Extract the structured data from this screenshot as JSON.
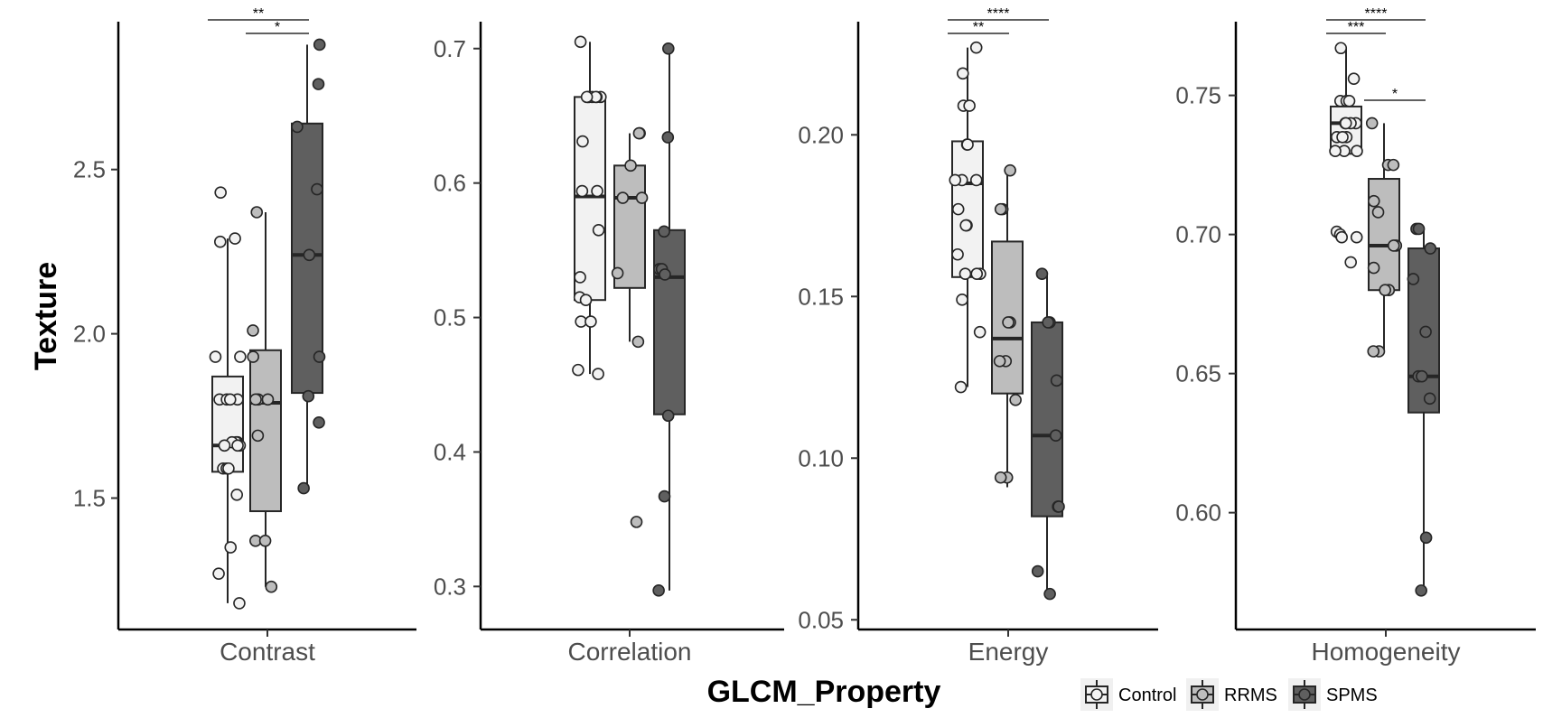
{
  "chart_data": {
    "type": "boxplot",
    "y_axis_title": "Texture",
    "x_axis_title": "GLCM_Property",
    "groups": [
      "Control",
      "RRMS",
      "SPMS"
    ],
    "colors": {
      "Control": "#f2f2f2",
      "RRMS": "#bdbdbd",
      "SPMS": "#5f5f5f",
      "line": "#262626",
      "axis": "#000000"
    },
    "legend": {
      "position": "bottom-right",
      "entries": [
        {
          "label": "Control",
          "group": "Control"
        },
        {
          "label": "RRMS",
          "group": "RRMS"
        },
        {
          "label": "SPMS",
          "group": "SPMS"
        }
      ]
    },
    "panels": [
      {
        "name": "Contrast",
        "ylim": [
          1.1,
          2.95
        ],
        "ticks": [
          1.5,
          2.0,
          2.5
        ],
        "tick_labels": [
          "1.5",
          "2.0",
          "2.5"
        ],
        "boxes": [
          {
            "group": "Control",
            "whisker_low": 1.18,
            "q1": 1.58,
            "median": 1.66,
            "q3": 1.87,
            "whisker_high": 2.29
          },
          {
            "group": "RRMS",
            "whisker_low": 1.23,
            "q1": 1.46,
            "median": 1.79,
            "q3": 1.95,
            "whisker_high": 2.37
          },
          {
            "group": "SPMS",
            "whisker_low": 1.53,
            "q1": 1.82,
            "median": 2.24,
            "q3": 2.64,
            "whisker_high": 2.88
          }
        ],
        "points": [
          {
            "group": "Control",
            "values": [
              2.43,
              2.29,
              2.28,
              1.93,
              1.93,
              1.8,
              1.8,
              1.8,
              1.8,
              1.67,
              1.67,
              1.67,
              1.66,
              1.66,
              1.66,
              1.59,
              1.59,
              1.59,
              1.51,
              1.35,
              1.27,
              1.18
            ]
          },
          {
            "group": "RRMS",
            "values": [
              2.37,
              2.01,
              1.93,
              1.8,
              1.8,
              1.8,
              1.69,
              1.37,
              1.37,
              1.23
            ]
          },
          {
            "group": "SPMS",
            "values": [
              2.88,
              2.76,
              2.63,
              2.44,
              2.24,
              1.93,
              1.81,
              1.73,
              1.53
            ]
          }
        ],
        "significance": [
          {
            "from": "Control",
            "to": "SPMS",
            "label": "**",
            "level": 2
          },
          {
            "from": "RRMS",
            "to": "SPMS",
            "label": "*",
            "level": 1
          }
        ]
      },
      {
        "name": "Correlation",
        "ylim": [
          0.268,
          0.72
        ],
        "ticks": [
          0.3,
          0.4,
          0.5,
          0.6,
          0.7
        ],
        "tick_labels": [
          "0.3",
          "0.4",
          "0.5",
          "0.6",
          "0.7"
        ],
        "boxes": [
          {
            "group": "Control",
            "whisker_low": 0.458,
            "q1": 0.513,
            "median": 0.59,
            "q3": 0.664,
            "whisker_high": 0.705
          },
          {
            "group": "RRMS",
            "whisker_low": 0.482,
            "q1": 0.522,
            "median": 0.589,
            "q3": 0.613,
            "whisker_high": 0.637
          },
          {
            "group": "SPMS",
            "whisker_low": 0.297,
            "q1": 0.428,
            "median": 0.53,
            "q3": 0.565,
            "whisker_high": 0.7
          }
        ],
        "points": [
          {
            "group": "Control",
            "values": [
              0.705,
              0.664,
              0.664,
              0.664,
              0.664,
              0.664,
              0.664,
              0.664,
              0.631,
              0.594,
              0.594,
              0.565,
              0.53,
              0.515,
              0.513,
              0.497,
              0.497,
              0.461,
              0.458
            ]
          },
          {
            "group": "RRMS",
            "values": [
              0.637,
              0.637,
              0.613,
              0.589,
              0.589,
              0.533,
              0.482,
              0.348
            ]
          },
          {
            "group": "SPMS",
            "values": [
              0.7,
              0.634,
              0.564,
              0.536,
              0.536,
              0.532,
              0.427,
              0.367,
              0.297
            ]
          }
        ],
        "significance": []
      },
      {
        "name": "Energy",
        "ylim": [
          0.047,
          0.235
        ],
        "ticks": [
          0.05,
          0.1,
          0.15,
          0.2
        ],
        "tick_labels": [
          "0.05",
          "0.10",
          "0.15",
          "0.20"
        ],
        "boxes": [
          {
            "group": "Control",
            "whisker_low": 0.122,
            "q1": 0.156,
            "median": 0.185,
            "q3": 0.198,
            "whisker_high": 0.227
          },
          {
            "group": "RRMS",
            "whisker_low": 0.091,
            "q1": 0.12,
            "median": 0.137,
            "q3": 0.167,
            "whisker_high": 0.189
          },
          {
            "group": "SPMS",
            "whisker_low": 0.058,
            "q1": 0.082,
            "median": 0.107,
            "q3": 0.142,
            "whisker_high": 0.157
          }
        ],
        "points": [
          {
            "group": "Control",
            "values": [
              0.227,
              0.219,
              0.209,
              0.209,
              0.197,
              0.197,
              0.186,
              0.186,
              0.186,
              0.177,
              0.172,
              0.172,
              0.163,
              0.157,
              0.157,
              0.157,
              0.149,
              0.139,
              0.122
            ]
          },
          {
            "group": "RRMS",
            "values": [
              0.189,
              0.177,
              0.177,
              0.142,
              0.142,
              0.13,
              0.13,
              0.118,
              0.094,
              0.094
            ]
          },
          {
            "group": "SPMS",
            "values": [
              0.157,
              0.142,
              0.142,
              0.124,
              0.107,
              0.085,
              0.085,
              0.065,
              0.058
            ]
          }
        ],
        "significance": [
          {
            "from": "Control",
            "to": "SPMS",
            "label": "****",
            "level": 2
          },
          {
            "from": "Control",
            "to": "RRMS",
            "label": "**",
            "level": 1
          }
        ]
      },
      {
        "name": "Homogeneity",
        "ylim": [
          0.558,
          0.7765
        ],
        "ticks": [
          0.6,
          0.65,
          0.7,
          0.75
        ],
        "tick_labels": [
          "0.60",
          "0.65",
          "0.70",
          "0.75"
        ],
        "boxes": [
          {
            "group": "Control",
            "whisker_low": 0.729,
            "q1": 0.729,
            "median": 0.74,
            "q3": 0.746,
            "whisker_high": 0.767
          },
          {
            "group": "RRMS",
            "whisker_low": 0.658,
            "q1": 0.68,
            "median": 0.696,
            "q3": 0.72,
            "whisker_high": 0.74
          },
          {
            "group": "SPMS",
            "whisker_low": 0.572,
            "q1": 0.636,
            "median": 0.649,
            "q3": 0.695,
            "whisker_high": 0.702
          }
        ],
        "points": [
          {
            "group": "Control",
            "values": [
              0.767,
              0.756,
              0.748,
              0.748,
              0.748,
              0.74,
              0.74,
              0.74,
              0.74,
              0.735,
              0.735,
              0.735,
              0.73,
              0.73,
              0.73,
              0.701,
              0.7,
              0.699,
              0.699,
              0.69
            ]
          },
          {
            "group": "RRMS",
            "values": [
              0.74,
              0.725,
              0.725,
              0.712,
              0.708,
              0.696,
              0.696,
              0.688,
              0.68,
              0.68,
              0.658,
              0.658
            ]
          },
          {
            "group": "SPMS",
            "values": [
              0.702,
              0.702,
              0.695,
              0.684,
              0.665,
              0.649,
              0.649,
              0.641,
              0.591,
              0.572
            ]
          }
        ],
        "significance": [
          {
            "from": "Control",
            "to": "SPMS",
            "label": "****",
            "level": 2
          },
          {
            "from": "Control",
            "to": "RRMS",
            "label": "***",
            "level": 1
          },
          {
            "from": "RRMS",
            "to": "SPMS",
            "label": "*",
            "level": 3
          }
        ]
      }
    ]
  }
}
